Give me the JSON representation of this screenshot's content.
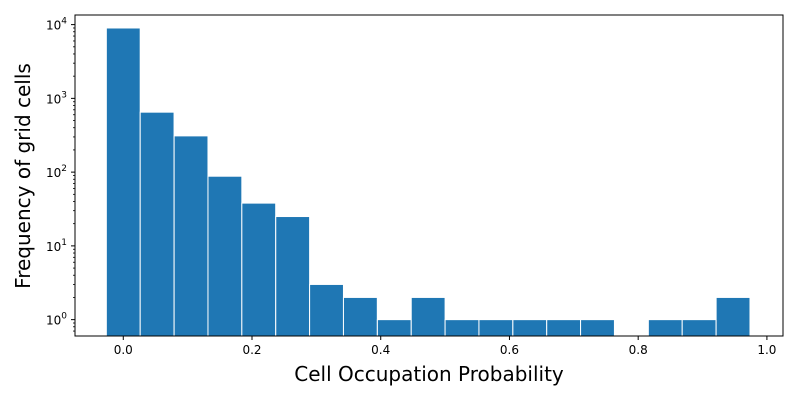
{
  "chart_data": {
    "type": "bar",
    "x_centers": [
      0.0,
      0.0526,
      0.1053,
      0.1579,
      0.2105,
      0.2632,
      0.3158,
      0.3684,
      0.4211,
      0.4737,
      0.5263,
      0.5789,
      0.6316,
      0.6842,
      0.7368,
      0.7895,
      0.8421,
      0.8947,
      0.9474
    ],
    "values": [
      9000,
      650,
      310,
      88,
      38,
      25,
      3,
      2,
      1,
      2,
      1,
      1,
      1,
      1,
      1,
      0,
      1,
      1,
      2
    ],
    "xlabel": "Cell Occupation Probability",
    "ylabel": "Frequency of grid cells",
    "xlim": [
      -0.075,
      1.025
    ],
    "ylim": [
      0.6,
      13500
    ],
    "yscale": "log",
    "x_ticks": [
      0.0,
      0.2,
      0.4,
      0.6,
      0.8,
      1.0
    ],
    "x_tick_labels": [
      "0.0",
      "0.2",
      "0.4",
      "0.6",
      "0.8",
      "1.0"
    ],
    "y_ticks": [
      1,
      10,
      100,
      1000,
      10000
    ],
    "y_tick_labels": [
      "10^0",
      "10^1",
      "10^2",
      "10^3",
      "10^4"
    ],
    "grid": false,
    "bar_color": "#1f77b4"
  }
}
